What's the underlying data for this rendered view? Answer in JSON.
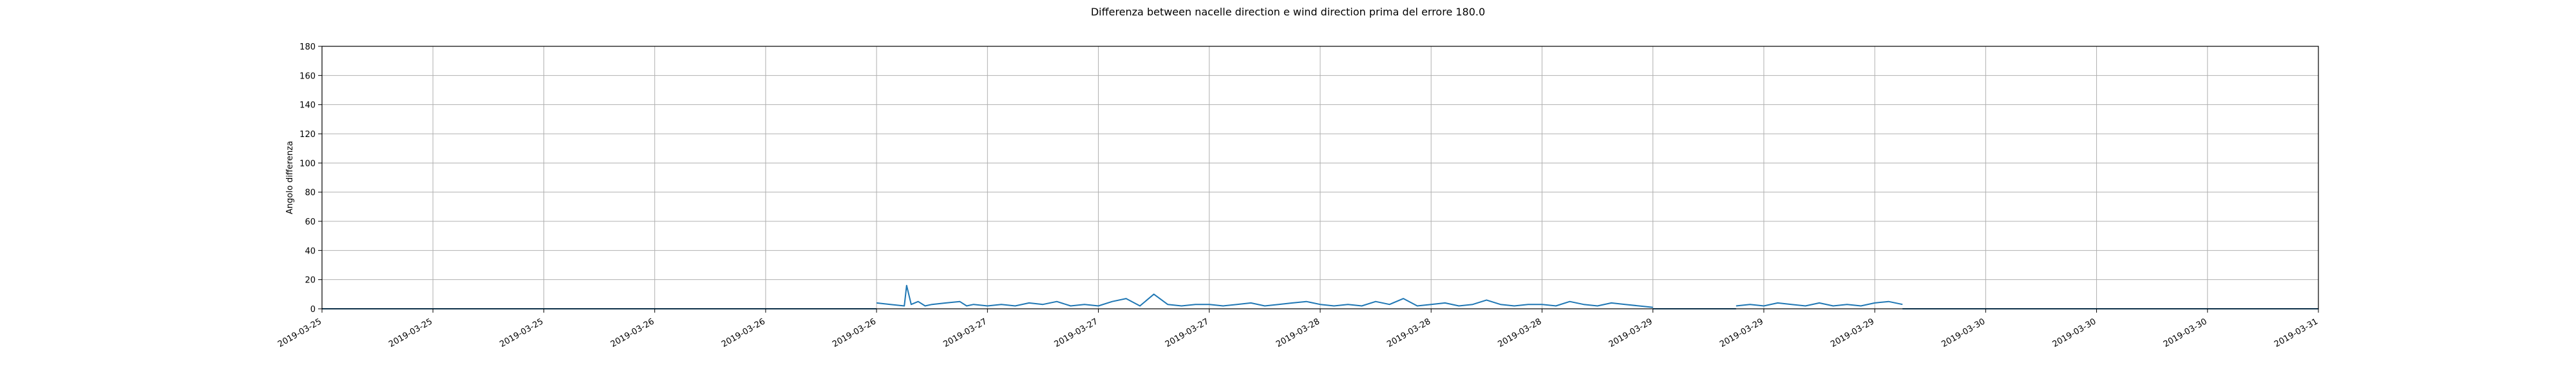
{
  "chart_data": {
    "type": "line",
    "title": "Differenza between nacelle direction e wind direction prima del errore 180.0",
    "xlabel": "",
    "ylabel": "Angolo differenza",
    "ylim": [
      0,
      180
    ],
    "yticks": [
      0,
      20,
      40,
      60,
      80,
      100,
      120,
      140,
      160,
      180
    ],
    "xlim": [
      "2019-03-25 00:00",
      "2019-03-31 00:00"
    ],
    "xticks": [
      {
        "value": "2019-03-25 00:00",
        "label": "2019-03-25"
      },
      {
        "value": "2019-03-25 08:00",
        "label": "2019-03-25"
      },
      {
        "value": "2019-03-25 16:00",
        "label": "2019-03-25"
      },
      {
        "value": "2019-03-26 00:00",
        "label": "2019-03-26"
      },
      {
        "value": "2019-03-26 08:00",
        "label": "2019-03-26"
      },
      {
        "value": "2019-03-26 16:00",
        "label": "2019-03-26"
      },
      {
        "value": "2019-03-27 00:00",
        "label": "2019-03-27"
      },
      {
        "value": "2019-03-27 08:00",
        "label": "2019-03-27"
      },
      {
        "value": "2019-03-27 16:00",
        "label": "2019-03-27"
      },
      {
        "value": "2019-03-28 00:00",
        "label": "2019-03-28"
      },
      {
        "value": "2019-03-28 08:00",
        "label": "2019-03-28"
      },
      {
        "value": "2019-03-28 16:00",
        "label": "2019-03-28"
      },
      {
        "value": "2019-03-29 00:00",
        "label": "2019-03-29"
      },
      {
        "value": "2019-03-29 08:00",
        "label": "2019-03-29"
      },
      {
        "value": "2019-03-29 16:00",
        "label": "2019-03-29"
      },
      {
        "value": "2019-03-30 00:00",
        "label": "2019-03-30"
      },
      {
        "value": "2019-03-30 08:00",
        "label": "2019-03-30"
      },
      {
        "value": "2019-03-30 16:00",
        "label": "2019-03-30"
      },
      {
        "value": "2019-03-31 00:00",
        "label": "2019-03-31"
      }
    ],
    "grid": true,
    "series": [
      {
        "color": "#1f77b4",
        "segments": [
          {
            "x": [
              "2019-03-25 00:00",
              "2019-03-26 16:00"
            ],
            "y": [
              0,
              0
            ]
          },
          {
            "x": [
              "2019-03-26 16:00",
              "2019-03-26 17:00",
              "2019-03-26 18:00",
              "2019-03-26 18:10",
              "2019-03-26 18:30",
              "2019-03-26 19:00",
              "2019-03-26 19:30",
              "2019-03-26 20:00",
              "2019-03-26 21:00",
              "2019-03-26 22:00",
              "2019-03-26 22:30",
              "2019-03-26 23:00",
              "2019-03-27 00:00",
              "2019-03-27 01:00",
              "2019-03-27 02:00",
              "2019-03-27 03:00",
              "2019-03-27 04:00",
              "2019-03-27 05:00",
              "2019-03-27 06:00",
              "2019-03-27 07:00",
              "2019-03-27 08:00",
              "2019-03-27 09:00",
              "2019-03-27 10:00",
              "2019-03-27 11:00",
              "2019-03-27 12:00",
              "2019-03-27 13:00",
              "2019-03-27 14:00",
              "2019-03-27 15:00",
              "2019-03-27 16:00",
              "2019-03-27 17:00",
              "2019-03-27 18:00",
              "2019-03-27 19:00",
              "2019-03-27 20:00",
              "2019-03-27 21:00",
              "2019-03-27 22:00",
              "2019-03-27 23:00",
              "2019-03-28 00:00",
              "2019-03-28 01:00",
              "2019-03-28 02:00",
              "2019-03-28 03:00",
              "2019-03-28 04:00",
              "2019-03-28 05:00",
              "2019-03-28 06:00",
              "2019-03-28 07:00",
              "2019-03-28 08:00",
              "2019-03-28 09:00",
              "2019-03-28 10:00",
              "2019-03-28 11:00",
              "2019-03-28 12:00",
              "2019-03-28 13:00",
              "2019-03-28 14:00",
              "2019-03-28 15:00",
              "2019-03-28 16:00",
              "2019-03-28 17:00",
              "2019-03-28 18:00",
              "2019-03-28 19:00",
              "2019-03-28 20:00",
              "2019-03-28 21:00",
              "2019-03-28 22:00",
              "2019-03-28 23:00",
              "2019-03-29 00:00"
            ],
            "y": [
              4,
              3,
              2,
              16,
              3,
              5,
              2,
              3,
              4,
              5,
              2,
              3,
              2,
              3,
              2,
              4,
              3,
              5,
              2,
              3,
              2,
              5,
              7,
              2,
              10,
              3,
              2,
              3,
              3,
              2,
              3,
              4,
              2,
              3,
              4,
              5,
              3,
              2,
              3,
              2,
              5,
              3,
              7,
              2,
              3,
              4,
              2,
              3,
              6,
              3,
              2,
              3,
              3,
              2,
              5,
              3,
              2,
              4,
              3,
              2,
              1
            ]
          },
          {
            "x": [
              "2019-03-29 00:00",
              "2019-03-29 06:00"
            ],
            "y": [
              0,
              0
            ]
          },
          {
            "x": [
              "2019-03-29 06:00",
              "2019-03-29 07:00",
              "2019-03-29 08:00",
              "2019-03-29 09:00",
              "2019-03-29 10:00",
              "2019-03-29 11:00",
              "2019-03-29 12:00",
              "2019-03-29 13:00",
              "2019-03-29 14:00",
              "2019-03-29 15:00",
              "2019-03-29 16:00",
              "2019-03-29 17:00",
              "2019-03-29 18:00"
            ],
            "y": [
              2,
              3,
              2,
              4,
              3,
              2,
              4,
              2,
              3,
              2,
              4,
              5,
              3
            ]
          },
          {
            "x": [
              "2019-03-29 18:00",
              "2019-03-31 00:00"
            ],
            "y": [
              0,
              0
            ]
          }
        ]
      }
    ]
  }
}
